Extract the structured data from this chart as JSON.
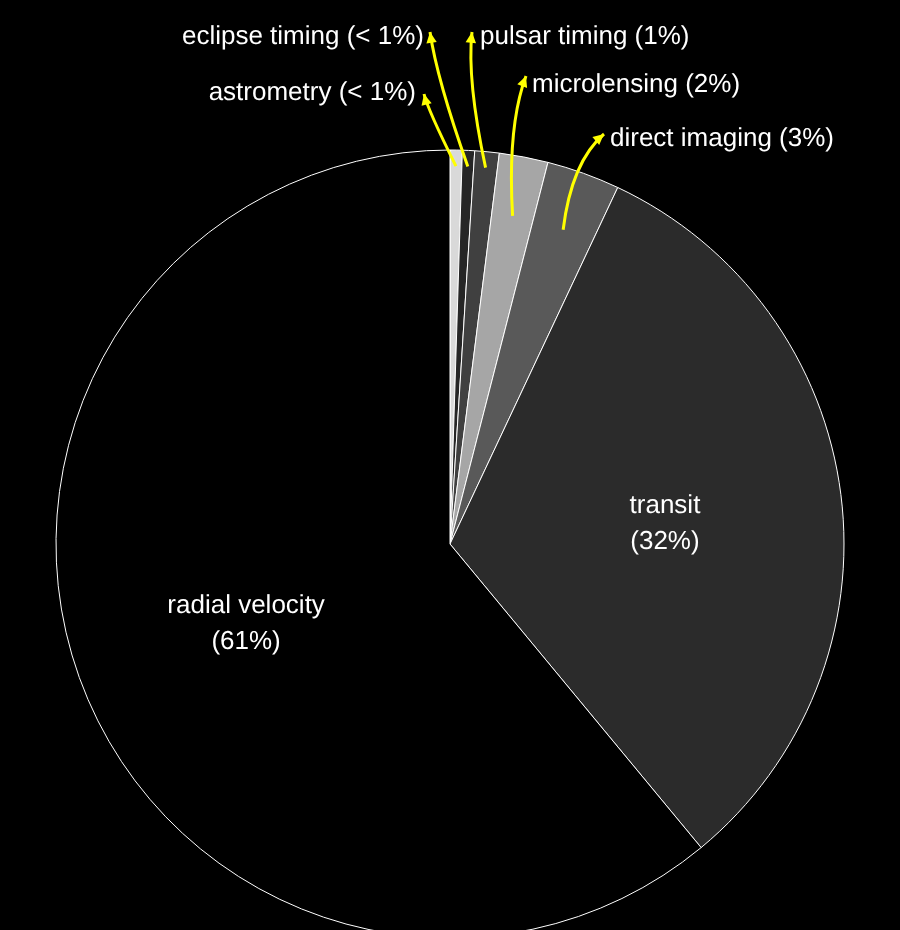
{
  "chart_data": {
    "type": "pie",
    "categories": [
      "astrometry",
      "eclipse timing",
      "pulsar timing",
      "microlensing",
      "direct imaging",
      "transit",
      "radial velocity"
    ],
    "values": [
      0.5,
      0.5,
      1,
      2,
      3,
      32,
      61
    ],
    "colors": [
      "#d9d9d9",
      "#262626",
      "#404040",
      "#a6a6a6",
      "#595959",
      "#2b2b2b",
      "#000000"
    ],
    "value_labels": [
      "(< 1%)",
      "(< 1%)",
      "(1%)",
      "(2%)",
      "(3%)",
      "(32%)",
      "(61%)"
    ]
  }
}
